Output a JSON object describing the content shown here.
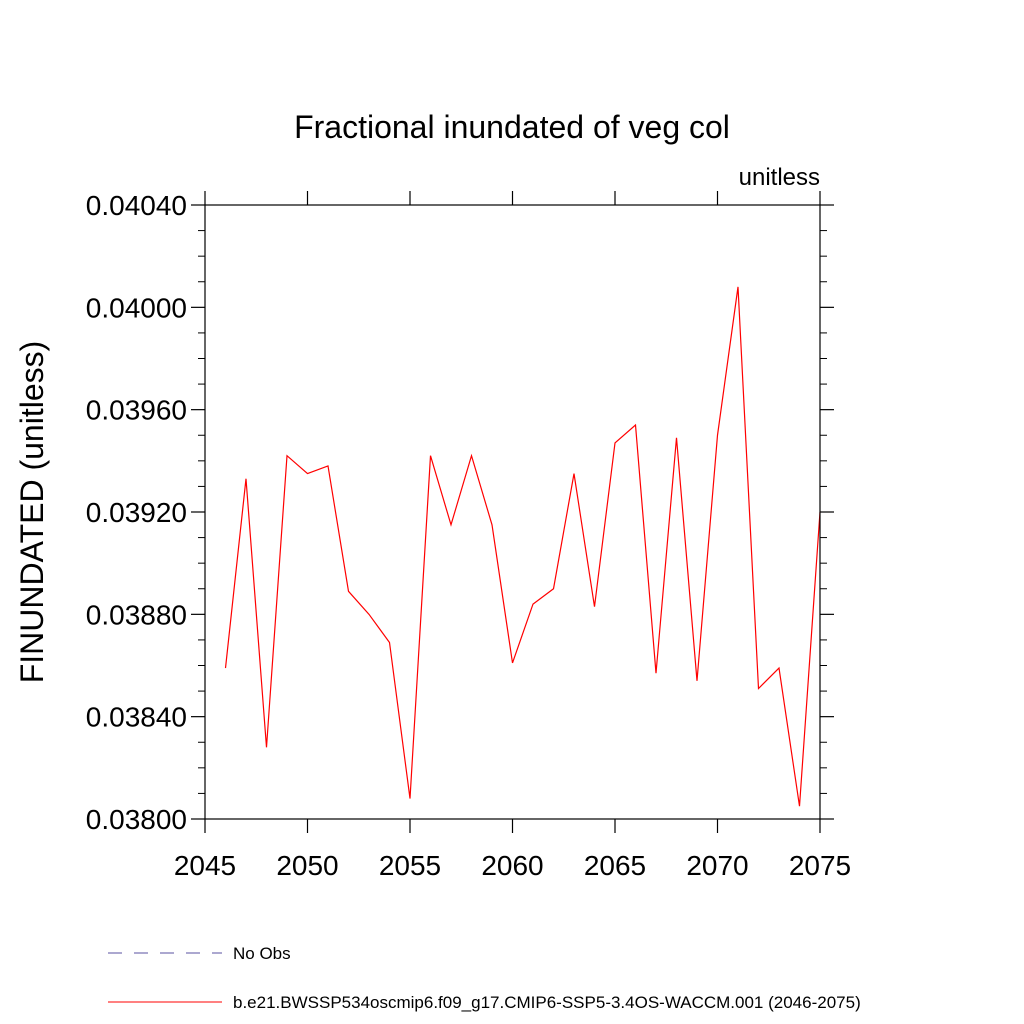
{
  "chart_data": {
    "type": "line",
    "title": "Fractional inundated of veg col",
    "units_label": "unitless",
    "ylabel": "FINUNDATED  (unitless)",
    "xlabel": "",
    "xlim": [
      2045,
      2075
    ],
    "ylim": [
      0.038,
      0.0404
    ],
    "x_ticks": [
      "2045",
      "2050",
      "2055",
      "2060",
      "2065",
      "2070",
      "2075"
    ],
    "y_ticks": [
      "0.03800",
      "0.03840",
      "0.03880",
      "0.03920",
      "0.03960",
      "0.04000",
      "0.04040"
    ],
    "grid": false,
    "legend_position": "bottom",
    "series": [
      {
        "name": "b.e21.BWSSP534oscmip6.f09_g17.CMIP6-SSP5-3.4OS-WACCM.001 (2046-2075)",
        "color": "#ff0000",
        "style": "solid",
        "x": [
          2046,
          2047,
          2048,
          2049,
          2050,
          2051,
          2052,
          2053,
          2054,
          2055,
          2056,
          2057,
          2058,
          2059,
          2060,
          2061,
          2062,
          2063,
          2064,
          2065,
          2066,
          2067,
          2068,
          2069,
          2070,
          2071,
          2072,
          2073,
          2074,
          2075
        ],
        "values": [
          0.03859,
          0.03933,
          0.03828,
          0.03942,
          0.03935,
          0.03938,
          0.03889,
          0.0388,
          0.03869,
          0.03808,
          0.03942,
          0.03915,
          0.03942,
          0.03915,
          0.03861,
          0.03884,
          0.0389,
          0.03935,
          0.03883,
          0.03947,
          0.03954,
          0.03857,
          0.03949,
          0.03854,
          0.0395,
          0.04008,
          0.03851,
          0.03859,
          0.03805,
          0.0392
        ]
      }
    ],
    "legend": [
      {
        "label": "No Obs",
        "color": "#5a50a0",
        "style": "dashed"
      },
      {
        "label": "b.e21.BWSSP534oscmip6.f09_g17.CMIP6-SSP5-3.4OS-WACCM.001 (2046-2075)",
        "color": "#ff0000",
        "style": "solid"
      }
    ]
  }
}
